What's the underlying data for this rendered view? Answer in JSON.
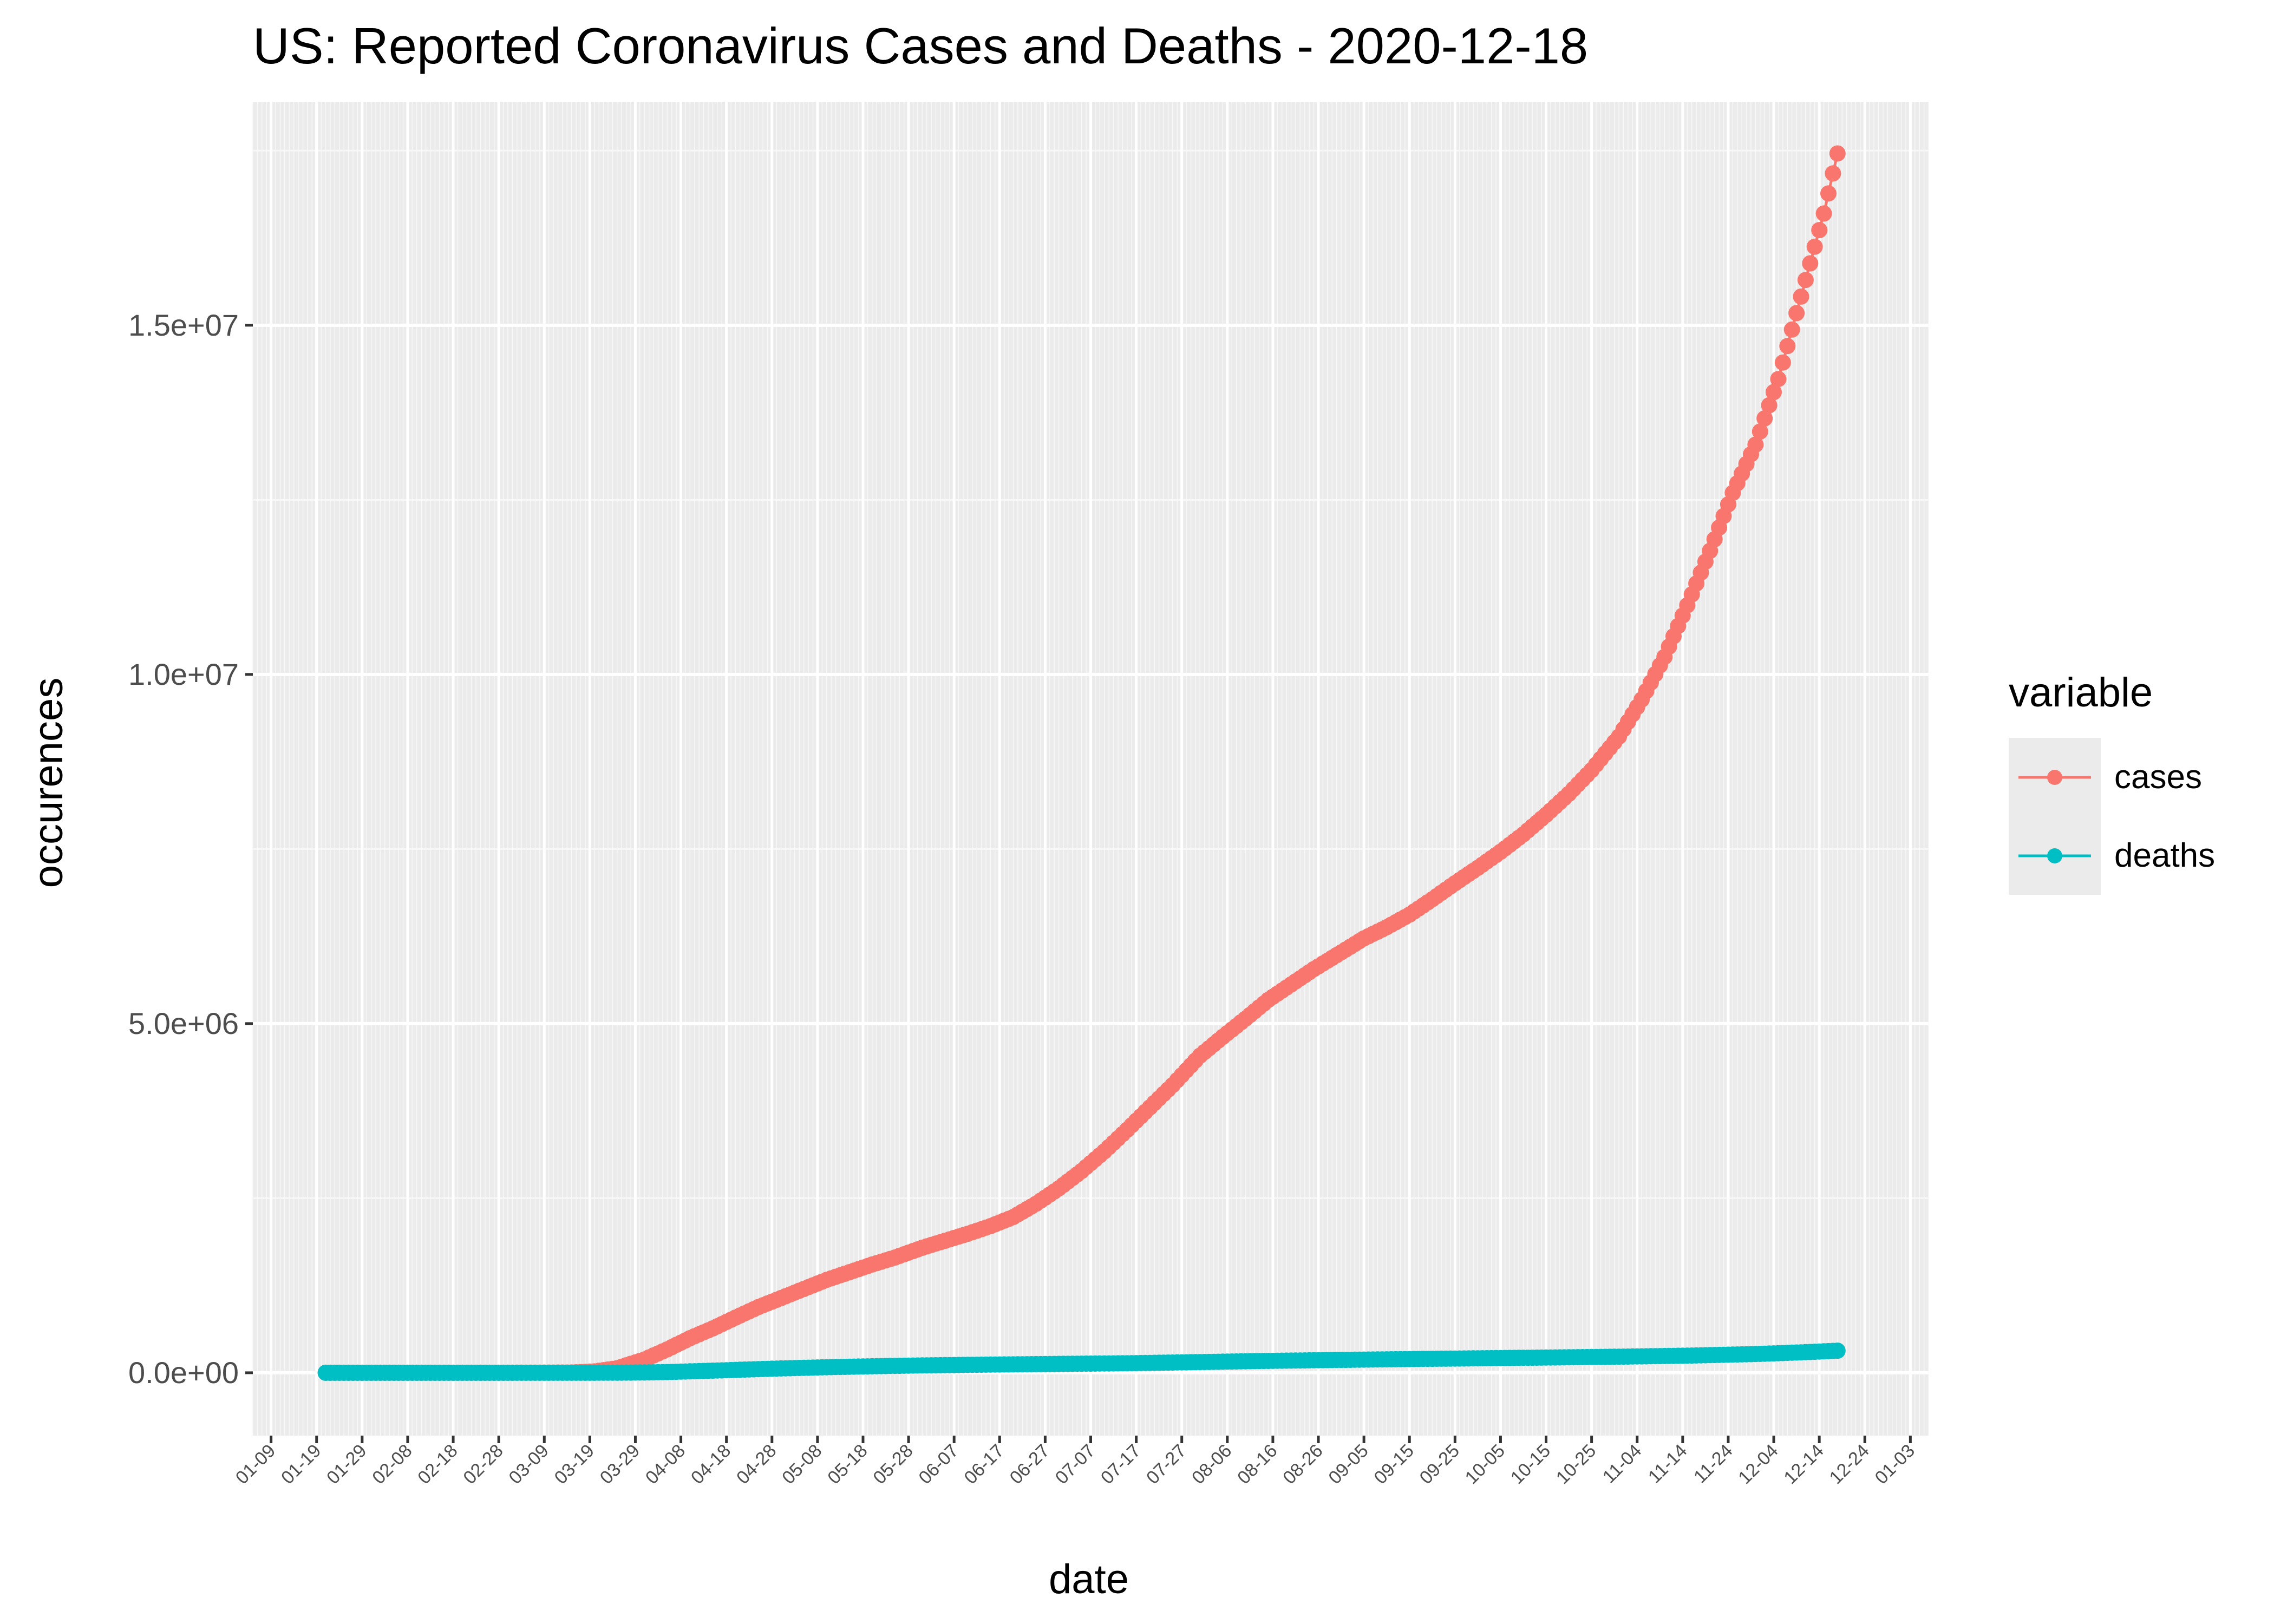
{
  "chart_data": {
    "type": "line",
    "title": "US: Reported Coronavirus Cases and Deaths - 2020-12-18",
    "xlabel": "date",
    "ylabel": "occurences",
    "legend_title": "variable",
    "legend_position": "right",
    "grid": true,
    "x_range": [
      "2020-01-05",
      "2021-01-07"
    ],
    "ylim": [
      -900000,
      18200000
    ],
    "y_ticks": [
      0,
      5000000,
      10000000,
      15000000
    ],
    "y_tick_labels": [
      "0.0e+00",
      "5.0e+06",
      "1.0e+07",
      "1.5e+07"
    ],
    "x_tick_dates": [
      "2020-01-09",
      "2020-01-19",
      "2020-01-29",
      "2020-02-08",
      "2020-02-18",
      "2020-02-28",
      "2020-03-09",
      "2020-03-19",
      "2020-03-29",
      "2020-04-08",
      "2020-04-18",
      "2020-04-28",
      "2020-05-08",
      "2020-05-18",
      "2020-05-28",
      "2020-06-07",
      "2020-06-17",
      "2020-06-27",
      "2020-07-07",
      "2020-07-17",
      "2020-07-27",
      "2020-08-06",
      "2020-08-16",
      "2020-08-26",
      "2020-09-05",
      "2020-09-15",
      "2020-09-25",
      "2020-10-05",
      "2020-10-15",
      "2020-10-25",
      "2020-11-04",
      "2020-11-14",
      "2020-11-24",
      "2020-12-04",
      "2020-12-14",
      "2020-12-24",
      "2021-01-03"
    ],
    "x_tick_labels": [
      "01-09",
      "01-19",
      "01-29",
      "02-08",
      "02-18",
      "02-28",
      "03-09",
      "03-19",
      "03-29",
      "04-08",
      "04-18",
      "04-28",
      "05-08",
      "05-18",
      "05-28",
      "06-07",
      "06-17",
      "06-27",
      "07-07",
      "07-17",
      "07-27",
      "08-06",
      "08-16",
      "08-26",
      "09-05",
      "09-15",
      "09-25",
      "10-05",
      "10-15",
      "10-25",
      "11-04",
      "11-14",
      "11-24",
      "12-04",
      "12-14",
      "12-24",
      "01-03"
    ],
    "series": [
      {
        "name": "cases",
        "color": "#F8766D",
        "points": [
          [
            "2020-01-21",
            0
          ],
          [
            "2020-03-01",
            30
          ],
          [
            "2020-03-15",
            3500
          ],
          [
            "2020-03-20",
            19000
          ],
          [
            "2020-03-25",
            65000
          ],
          [
            "2020-03-31",
            190000
          ],
          [
            "2020-04-05",
            335000
          ],
          [
            "2020-04-10",
            495000
          ],
          [
            "2020-04-15",
            635000
          ],
          [
            "2020-04-20",
            790000
          ],
          [
            "2020-04-25",
            940000
          ],
          [
            "2020-04-30",
            1070000
          ],
          [
            "2020-05-05",
            1200000
          ],
          [
            "2020-05-10",
            1330000
          ],
          [
            "2020-05-15",
            1440000
          ],
          [
            "2020-05-20",
            1550000
          ],
          [
            "2020-05-25",
            1650000
          ],
          [
            "2020-05-31",
            1790000
          ],
          [
            "2020-06-05",
            1890000
          ],
          [
            "2020-06-10",
            1990000
          ],
          [
            "2020-06-15",
            2100000
          ],
          [
            "2020-06-20",
            2230000
          ],
          [
            "2020-06-25",
            2420000
          ],
          [
            "2020-06-30",
            2640000
          ],
          [
            "2020-07-05",
            2890000
          ],
          [
            "2020-07-10",
            3170000
          ],
          [
            "2020-07-15",
            3480000
          ],
          [
            "2020-07-20",
            3800000
          ],
          [
            "2020-07-25",
            4120000
          ],
          [
            "2020-07-31",
            4540000
          ],
          [
            "2020-08-05",
            4810000
          ],
          [
            "2020-08-10",
            5070000
          ],
          [
            "2020-08-15",
            5340000
          ],
          [
            "2020-08-20",
            5560000
          ],
          [
            "2020-08-25",
            5780000
          ],
          [
            "2020-08-31",
            6020000
          ],
          [
            "2020-09-05",
            6220000
          ],
          [
            "2020-09-10",
            6380000
          ],
          [
            "2020-09-15",
            6560000
          ],
          [
            "2020-09-20",
            6780000
          ],
          [
            "2020-09-25",
            7010000
          ],
          [
            "2020-09-30",
            7230000
          ],
          [
            "2020-10-05",
            7460000
          ],
          [
            "2020-10-10",
            7710000
          ],
          [
            "2020-10-15",
            7990000
          ],
          [
            "2020-10-20",
            8290000
          ],
          [
            "2020-10-25",
            8630000
          ],
          [
            "2020-10-31",
            9110000
          ],
          [
            "2020-11-05",
            9640000
          ],
          [
            "2020-11-10",
            10250000
          ],
          [
            "2020-11-15",
            10990000
          ],
          [
            "2020-11-20",
            11770000
          ],
          [
            "2020-11-25",
            12600000
          ],
          [
            "2020-11-30",
            13290000
          ],
          [
            "2020-12-05",
            14230000
          ],
          [
            "2020-12-10",
            15410000
          ],
          [
            "2020-12-15",
            16600000
          ],
          [
            "2020-12-18",
            17460000
          ]
        ]
      },
      {
        "name": "deaths",
        "color": "#00BFC4",
        "points": [
          [
            "2020-01-21",
            0
          ],
          [
            "2020-02-29",
            1
          ],
          [
            "2020-03-15",
            70
          ],
          [
            "2020-03-20",
            280
          ],
          [
            "2020-03-25",
            1100
          ],
          [
            "2020-03-31",
            4100
          ],
          [
            "2020-04-05",
            9700
          ],
          [
            "2020-04-10",
            20000
          ],
          [
            "2020-04-15",
            30000
          ],
          [
            "2020-04-20",
            41000
          ],
          [
            "2020-04-25",
            52000
          ],
          [
            "2020-04-30",
            62000
          ],
          [
            "2020-05-10",
            79000
          ],
          [
            "2020-05-20",
            93000
          ],
          [
            "2020-05-31",
            105000
          ],
          [
            "2020-06-15",
            117000
          ],
          [
            "2020-06-30",
            127000
          ],
          [
            "2020-07-15",
            136000
          ],
          [
            "2020-07-31",
            153000
          ],
          [
            "2020-08-15",
            170000
          ],
          [
            "2020-08-31",
            184000
          ],
          [
            "2020-09-15",
            196000
          ],
          [
            "2020-09-30",
            207000
          ],
          [
            "2020-10-15",
            218000
          ],
          [
            "2020-10-31",
            230000
          ],
          [
            "2020-11-15",
            245000
          ],
          [
            "2020-11-30",
            268000
          ],
          [
            "2020-12-10",
            292000
          ],
          [
            "2020-12-18",
            316000
          ]
        ]
      }
    ]
  }
}
